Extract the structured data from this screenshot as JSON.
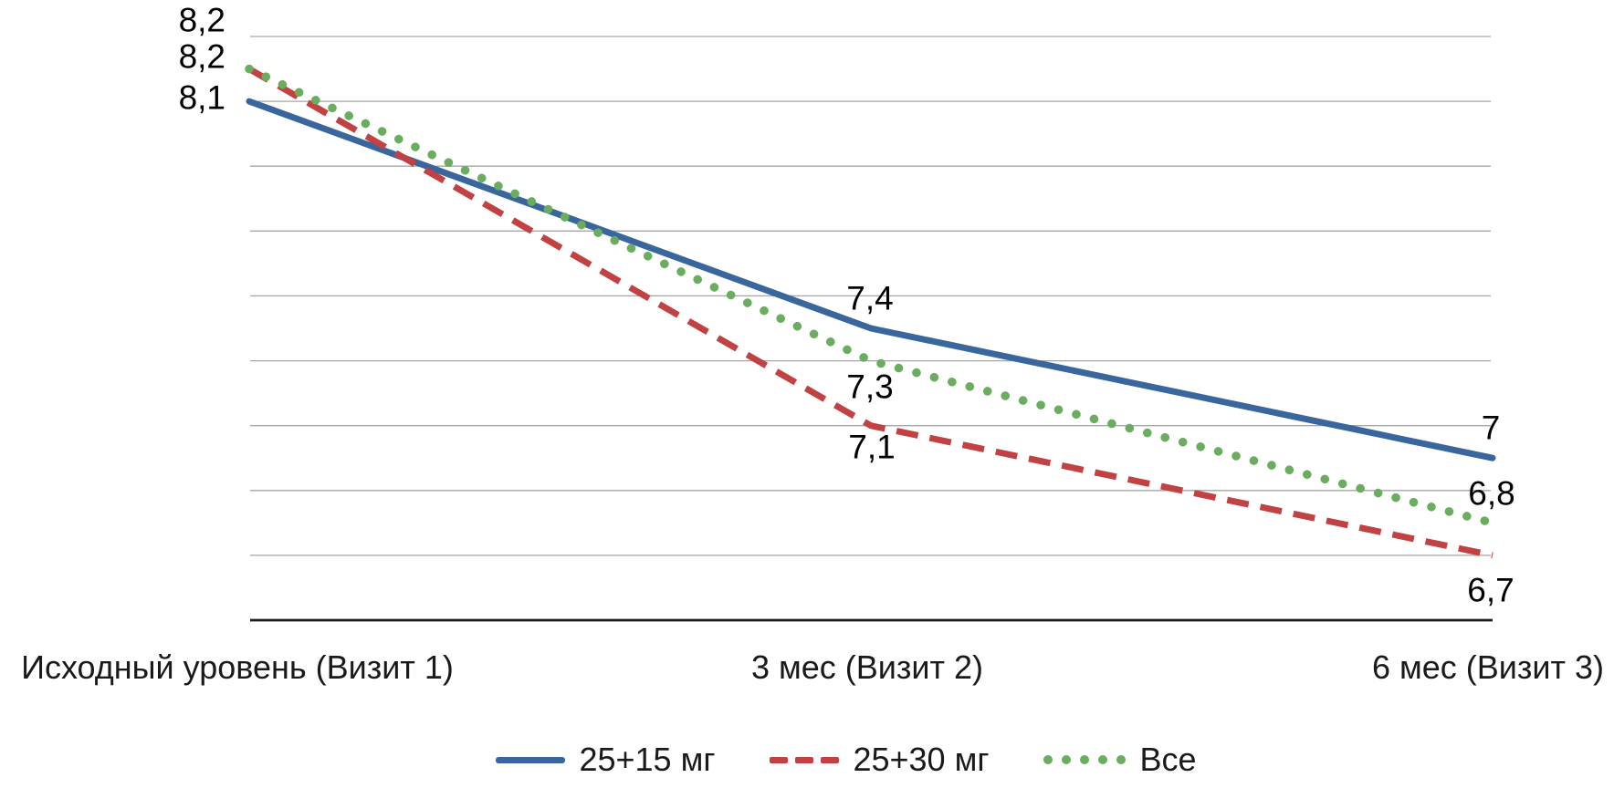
{
  "chart_data": {
    "type": "line",
    "title": "",
    "xlabel": "",
    "ylabel": "",
    "categories": [
      "Исходный уровень (Визит 1)",
      "3 мес (Визит 2)",
      "6 мес (Визит 3)"
    ],
    "series": [
      {
        "name": "25+15 мг",
        "values": [
          8.1,
          7.4,
          7.0
        ],
        "labels": [
          "8,1",
          "7,4",
          "7"
        ],
        "color": "#3A669E",
        "dash": "solid"
      },
      {
        "name": "25+30 мг",
        "values": [
          8.2,
          7.1,
          6.7
        ],
        "labels": [
          "8,2",
          "7,1",
          "6,7"
        ],
        "color": "#C24142",
        "dash": "dashed"
      },
      {
        "name": "Все",
        "values": [
          8.2,
          7.3,
          6.8
        ],
        "labels": [
          "8,2",
          "7,3",
          "6,8"
        ],
        "color": "#6BAD5E",
        "dash": "dotted"
      }
    ],
    "ylim": [
      6.5,
      8.3
    ],
    "grid_step": 0.2,
    "grid": true,
    "legend_position": "bottom",
    "decimal_separator": ","
  },
  "colors": {
    "gridline": "#A6A6A6",
    "axis": "#1A1A1A",
    "label_text": "#000000",
    "background": "#FFFFFF"
  }
}
